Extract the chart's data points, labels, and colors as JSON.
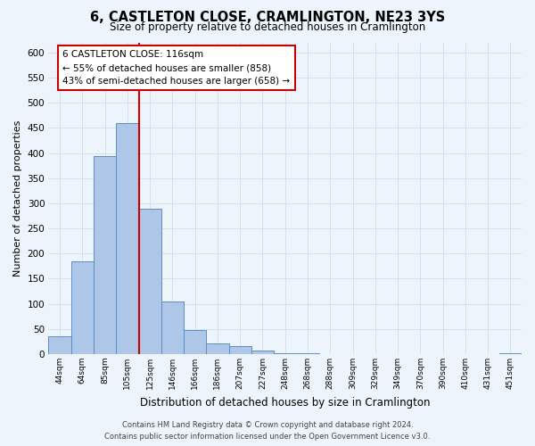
{
  "title": "6, CASTLETON CLOSE, CRAMLINGTON, NE23 3YS",
  "subtitle": "Size of property relative to detached houses in Cramlington",
  "xlabel": "Distribution of detached houses by size in Cramlington",
  "ylabel": "Number of detached properties",
  "bar_labels": [
    "44sqm",
    "64sqm",
    "85sqm",
    "105sqm",
    "125sqm",
    "146sqm",
    "166sqm",
    "186sqm",
    "207sqm",
    "227sqm",
    "248sqm",
    "268sqm",
    "288sqm",
    "309sqm",
    "329sqm",
    "349sqm",
    "370sqm",
    "390sqm",
    "410sqm",
    "431sqm",
    "451sqm"
  ],
  "bar_values": [
    35,
    185,
    393,
    460,
    290,
    105,
    48,
    22,
    16,
    8,
    2,
    1,
    0,
    0,
    0,
    0,
    0,
    0,
    0,
    0,
    1
  ],
  "bar_color": "#aec6e8",
  "bar_edge_color": "#5a8fc4",
  "vline_color": "#cc0000",
  "annotation_text": "6 CASTLETON CLOSE: 116sqm\n← 55% of detached houses are smaller (858)\n43% of semi-detached houses are larger (658) →",
  "annotation_box_color": "#ffffff",
  "annotation_box_edge": "#cc0000",
  "ylim": [
    0,
    620
  ],
  "yticks": [
    0,
    50,
    100,
    150,
    200,
    250,
    300,
    350,
    400,
    450,
    500,
    550,
    600
  ],
  "grid_color": "#d0d8e8",
  "bg_color": "#eef4fb",
  "footer_line1": "Contains HM Land Registry data © Crown copyright and database right 2024.",
  "footer_line2": "Contains public sector information licensed under the Open Government Licence v3.0."
}
